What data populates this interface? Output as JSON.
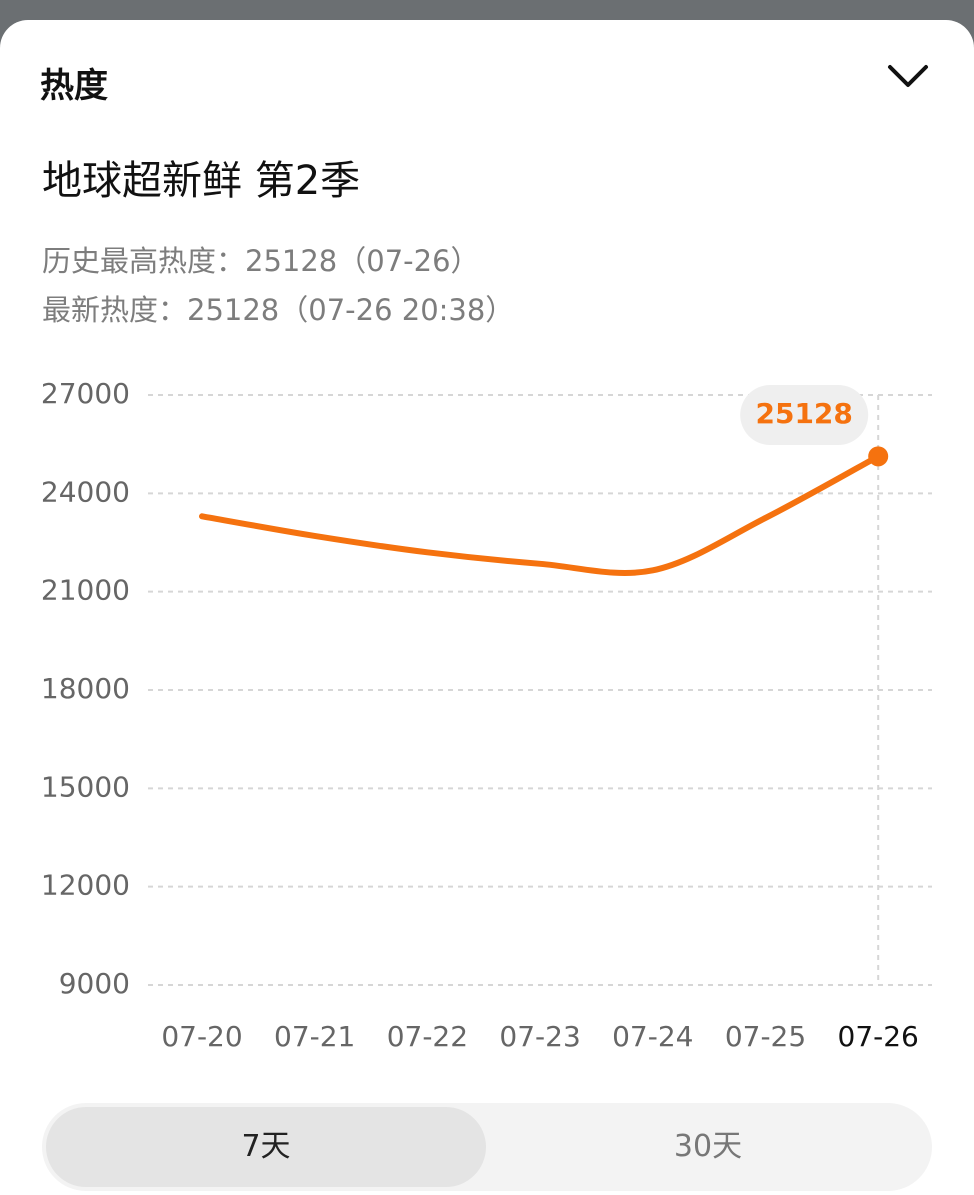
{
  "header": {
    "title": "热度"
  },
  "show": {
    "title": "地球超新鲜 第2季"
  },
  "stats": [
    "历史最高热度：25128（07-26）",
    "最新热度：25128（07-26 20:38）"
  ],
  "chart_data": {
    "type": "line",
    "categories": [
      "07-20",
      "07-21",
      "07-22",
      "07-23",
      "07-24",
      "07-25",
      "07-26"
    ],
    "series": [
      {
        "color": "#f5720f",
        "values": [
          23300,
          22700,
          22200,
          21850,
          21650,
          23250,
          25128
        ]
      }
    ],
    "ylim": [
      9000,
      27000
    ],
    "yticks": [
      9000,
      12000,
      15000,
      18000,
      21000,
      24000,
      27000
    ],
    "grid": true
  },
  "tabs": [
    "7天",
    "30天"
  ]
}
